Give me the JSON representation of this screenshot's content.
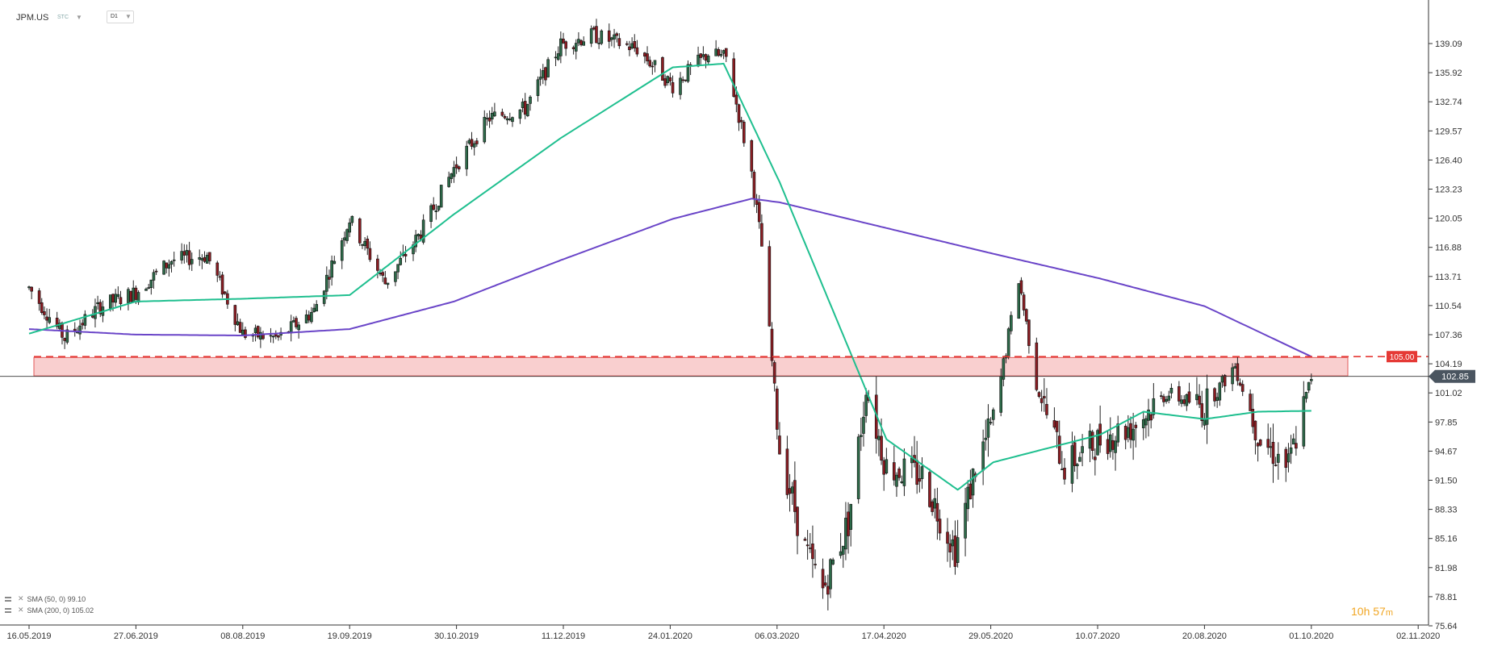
{
  "header": {
    "symbol": "JPM.US",
    "price_type": "STC",
    "timeframe": "D1"
  },
  "indicators": [
    {
      "label": "SMA (50, 0) 99.10",
      "color": "#1fbf8f"
    },
    {
      "label": "SMA (200, 0) 105.02",
      "color": "#6a45c8"
    }
  ],
  "timer": {
    "hours": "10h",
    "minutes": "57",
    "unit": "m"
  },
  "colors": {
    "bull_candle": "#2e6b4a",
    "bear_candle": "#8b1d23",
    "sma50": "#1fbf8f",
    "sma200": "#6a45c8",
    "zone_fill": "#f9cfcf",
    "zone_border": "#e25a5a",
    "resistance_line": "#e53935",
    "current_price_bg": "#4a5560",
    "resistance_label_bg": "#e53935",
    "axis_text": "#333333"
  },
  "chart_data": {
    "type": "candlestick",
    "symbol": "JPM.US",
    "y_ticks": [
      "139.09",
      "135.92",
      "132.74",
      "129.57",
      "126.40",
      "123.23",
      "120.05",
      "116.88",
      "113.71",
      "110.54",
      "107.36",
      "104.19",
      "101.02",
      "97.85",
      "94.67",
      "91.50",
      "88.33",
      "85.16",
      "81.98",
      "78.81",
      "75.64"
    ],
    "x_ticks": [
      "16.05.2019",
      "27.06.2019",
      "08.08.2019",
      "19.09.2019",
      "30.10.2019",
      "11.12.2019",
      "24.01.2020",
      "06.03.2020",
      "17.04.2020",
      "29.05.2020",
      "10.07.2020",
      "20.08.2020",
      "01.10.2020",
      "02.11.2020"
    ],
    "ylim": [
      75.64,
      142.26
    ],
    "current_price": 102.85,
    "current_price_label": "102.85",
    "resistance_level": 105.0,
    "resistance_label": "105.00",
    "resistance_zone": [
      102.9,
      104.9
    ],
    "sma50_anchors": [
      [
        "16.05.2019",
        107.5
      ],
      [
        "27.06.2019",
        111.0
      ],
      [
        "08.08.2019",
        111.3
      ],
      [
        "19.09.2019",
        111.7
      ],
      [
        "30.10.2019",
        120.5
      ],
      [
        "11.12.2019",
        128.8
      ],
      [
        "24.01.2020",
        136.5
      ],
      [
        "13.02.2020",
        136.9
      ],
      [
        "06.03.2020",
        124.0
      ],
      [
        "17.04.2020",
        96.0
      ],
      [
        "15.05.2020",
        90.5
      ],
      [
        "29.05.2020",
        93.5
      ],
      [
        "10.07.2020",
        96.5
      ],
      [
        "27.07.2020",
        99.0
      ],
      [
        "20.08.2020",
        98.2
      ],
      [
        "10.09.2020",
        99.0
      ],
      [
        "01.10.2020",
        99.1
      ]
    ],
    "sma200_anchors": [
      [
        "16.05.2019",
        108.0
      ],
      [
        "27.06.2019",
        107.4
      ],
      [
        "08.08.2019",
        107.3
      ],
      [
        "19.09.2019",
        108.0
      ],
      [
        "30.10.2019",
        111.0
      ],
      [
        "11.12.2019",
        115.5
      ],
      [
        "24.01.2020",
        120.0
      ],
      [
        "24.02.2020",
        122.2
      ],
      [
        "06.03.2020",
        121.8
      ],
      [
        "17.04.2020",
        119.0
      ],
      [
        "29.05.2020",
        116.2
      ],
      [
        "10.07.2020",
        113.5
      ],
      [
        "20.08.2020",
        110.5
      ],
      [
        "01.10.2020",
        105.0
      ]
    ],
    "price_anchors": [
      [
        "16.05.2019",
        112.5
      ],
      [
        "30.05.2019",
        107.0
      ],
      [
        "13.06.2019",
        110.5
      ],
      [
        "27.06.2019",
        112.0
      ],
      [
        "11.07.2019",
        115.5
      ],
      [
        "25.07.2019",
        116.0
      ],
      [
        "08.08.2019",
        107.5
      ],
      [
        "22.08.2019",
        107.0
      ],
      [
        "05.09.2019",
        110.0
      ],
      [
        "19.09.2019",
        120.0
      ],
      [
        "03.10.2019",
        113.0
      ],
      [
        "17.10.2019",
        118.5
      ],
      [
        "30.10.2019",
        125.5
      ],
      [
        "13.11.2019",
        131.0
      ],
      [
        "27.11.2019",
        132.0
      ],
      [
        "11.12.2019",
        139.0
      ],
      [
        "24.12.2019",
        140.0
      ],
      [
        "10.01.2020",
        138.5
      ],
      [
        "24.01.2020",
        134.5
      ],
      [
        "07.02.2020",
        138.0
      ],
      [
        "14.02.2020",
        137.5
      ],
      [
        "24.02.2020",
        125.0
      ],
      [
        "28.02.2020",
        117.0
      ],
      [
        "06.03.2020",
        95.0
      ],
      [
        "16.03.2020",
        84.0
      ],
      [
        "23.03.2020",
        79.5
      ],
      [
        "02.04.2020",
        87.0
      ],
      [
        "09.04.2020",
        101.5
      ],
      [
        "17.04.2020",
        93.0
      ],
      [
        "01.05.2020",
        92.0
      ],
      [
        "14.05.2020",
        84.0
      ],
      [
        "22.05.2020",
        93.0
      ],
      [
        "29.05.2020",
        98.0
      ],
      [
        "08.06.2020",
        113.5
      ],
      [
        "15.06.2020",
        102.0
      ],
      [
        "26.06.2020",
        93.0
      ],
      [
        "10.07.2020",
        96.0
      ],
      [
        "23.07.2020",
        97.5
      ],
      [
        "05.08.2020",
        101.0
      ],
      [
        "20.08.2020",
        99.5
      ],
      [
        "01.09.2020",
        104.0
      ],
      [
        "11.09.2020",
        96.0
      ],
      [
        "22.09.2020",
        93.0
      ],
      [
        "01.10.2020",
        102.8
      ]
    ]
  }
}
